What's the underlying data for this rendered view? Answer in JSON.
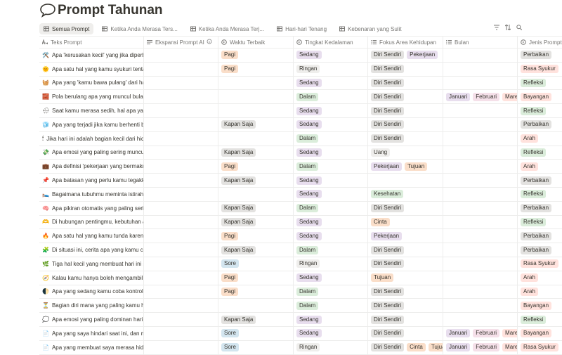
{
  "title": "Prompt Tahunan",
  "tabs": [
    "Semua Prompt",
    "Ketika Anda Merasa Ters...",
    "Ketika Anda Merasa Terj...",
    "Hari-hari Tenang",
    "Kebenaran yang Sulit"
  ],
  "table": {
    "columns": [
      "Teks Prompt",
      "Ekspansi Prompt AI",
      "Waktu Terbaik",
      "Tingkat Kedalaman",
      "Fokus Area Kehidupan",
      "Bulan",
      "Jenis Prompt"
    ],
    "tag_colors": {
      "Pagi": "#fadec9",
      "Kapan Saja": "#e3e2e0",
      "Sore": "#d3e5ef",
      "Sedang": "#e8deee",
      "Ringan": "#efeeec",
      "Dalam": "#dbeddb",
      "Diri Sendiri": "#e3e2e0",
      "Pekerjaan": "#e8deee",
      "Uang": "#efeeec",
      "Tujuan": "#fadec9",
      "Kesehatan": "#dbeddb",
      "Cinta": "#fadec9",
      "Januari": "#e8deee",
      "Februari": "#f5e0e9",
      "Maret": "#ffe2dd",
      "Perbaikan": "#e3e2e0",
      "Rasa Syukur": "#ffe2dd",
      "Refleksi": "#dbeddb",
      "Bayangan": "#ffe2dd",
      "Arah": "#ffe2dd"
    },
    "rows": [
      {
        "icon": "🛠️",
        "text": "Apa 'kerusakan kecil' yang jika diperbaiki",
        "waktu": [
          "Pagi"
        ],
        "kedalaman": [
          "Sedang"
        ],
        "fokus": [
          "Diri Sendiri",
          "Pekerjaan"
        ],
        "bulan": [],
        "jenis": [
          "Perbaikan"
        ]
      },
      {
        "icon": "🌞",
        "text": "Apa satu hal yang kamu syukuri tentang",
        "waktu": [
          "Pagi"
        ],
        "kedalaman": [
          "Ringan"
        ],
        "fokus": [
          "Diri Sendiri"
        ],
        "bulan": [],
        "jenis": [
          "Rasa Syukur"
        ]
      },
      {
        "icon": "🧺",
        "text": "Apa yang 'kamu bawa pulang' dari hari i",
        "waktu": [],
        "kedalaman": [
          "Sedang"
        ],
        "fokus": [
          "Diri Sendiri"
        ],
        "bulan": [],
        "jenis": [
          "Refleksi"
        ]
      },
      {
        "icon": "🧱",
        "text": "Pola berulang apa yang muncul bulan in",
        "waktu": [],
        "kedalaman": [
          "Dalam"
        ],
        "fokus": [
          "Diri Sendiri"
        ],
        "bulan": [
          "Januari",
          "Februari",
          "Maret"
        ],
        "jenis": [
          "Bayangan"
        ]
      },
      {
        "icon": "🌧",
        "text": "Saat kamu merasa sedih, hal apa yang l",
        "waktu": [],
        "kedalaman": [
          "Sedang"
        ],
        "fokus": [
          "Diri Sendiri"
        ],
        "bulan": [],
        "jenis": [
          "Refleksi"
        ]
      },
      {
        "icon": "🧊",
        "text": "Apa yang terjadi jika kamu berhenti bere",
        "waktu": [
          "Kapan Saja"
        ],
        "kedalaman": [
          "Sedang"
        ],
        "fokus": [
          "Diri Sendiri"
        ],
        "bulan": [],
        "jenis": [
          "Perbaikan"
        ]
      },
      {
        "icon": "🕯",
        "text": "Jika hari ini adalah bagian kecil dari hidu",
        "waktu": [],
        "kedalaman": [
          "Dalam"
        ],
        "fokus": [
          "Diri Sendiri"
        ],
        "bulan": [],
        "jenis": [
          "Arah"
        ]
      },
      {
        "icon": "💸",
        "text": "Apa emosi yang paling sering muncul sa",
        "waktu": [
          "Kapan Saja"
        ],
        "kedalaman": [
          "Sedang"
        ],
        "fokus": [
          "Uang"
        ],
        "bulan": [],
        "jenis": [
          "Refleksi"
        ]
      },
      {
        "icon": "💼",
        "text": "Apa definisi 'pekerjaan yang bermakna'",
        "waktu": [
          "Pagi"
        ],
        "kedalaman": [
          "Dalam"
        ],
        "fokus": [
          "Pekerjaan",
          "Tujuan"
        ],
        "bulan": [],
        "jenis": [
          "Arah"
        ]
      },
      {
        "icon": "📌",
        "text": "Apa batasan yang perlu kamu tegakkan",
        "waktu": [
          "Kapan Saja"
        ],
        "kedalaman": [
          "Sedang"
        ],
        "fokus": [],
        "bulan": [],
        "jenis": [
          "Perbaikan"
        ]
      },
      {
        "icon": "🛌",
        "text": "Bagaimana tubuhmu meminta istirahat a",
        "waktu": [],
        "kedalaman": [
          "Sedang"
        ],
        "fokus": [
          "Kesehatan"
        ],
        "bulan": [],
        "jenis": [
          "Refleksi"
        ]
      },
      {
        "icon": "🧠",
        "text": "Apa pikiran otomatis yang paling sering",
        "waktu": [
          "Kapan Saja"
        ],
        "kedalaman": [
          "Dalam"
        ],
        "fokus": [
          "Diri Sendiri"
        ],
        "bulan": [],
        "jenis": [
          "Perbaikan"
        ]
      },
      {
        "icon": "🫶",
        "text": "Di hubungan pentingmu, kebutuhan apa",
        "waktu": [
          "Kapan Saja"
        ],
        "kedalaman": [
          "Sedang"
        ],
        "fokus": [
          "Cinta"
        ],
        "bulan": [],
        "jenis": [
          "Refleksi"
        ]
      },
      {
        "icon": "🔥",
        "text": "Apa satu hal yang kamu tunda karena ta",
        "waktu": [
          "Pagi"
        ],
        "kedalaman": [
          "Sedang"
        ],
        "fokus": [
          "Pekerjaan"
        ],
        "bulan": [],
        "jenis": [
          "Perbaikan"
        ]
      },
      {
        "icon": "🧩",
        "text": "Di situasi ini, cerita apa yang kamu cerita",
        "waktu": [
          "Kapan Saja"
        ],
        "kedalaman": [
          "Dalam"
        ],
        "fokus": [
          "Diri Sendiri"
        ],
        "bulan": [],
        "jenis": [
          "Perbaikan"
        ]
      },
      {
        "icon": "🌿",
        "text": "Tiga hal kecil yang membuat hari ini sed",
        "waktu": [
          "Sore"
        ],
        "kedalaman": [
          "Ringan"
        ],
        "fokus": [
          "Diri Sendiri"
        ],
        "bulan": [],
        "jenis": [
          "Rasa Syukur"
        ]
      },
      {
        "icon": "🧭",
        "text": "Kalau kamu hanya boleh mengambil sat",
        "waktu": [
          "Pagi"
        ],
        "kedalaman": [
          "Sedang"
        ],
        "fokus": [
          "Tujuan"
        ],
        "bulan": [],
        "jenis": [
          "Arah"
        ]
      },
      {
        "icon": "🌓",
        "text": "Apa yang sedang kamu coba kontrol, pa",
        "waktu": [
          "Pagi"
        ],
        "kedalaman": [
          "Dalam"
        ],
        "fokus": [
          "Diri Sendiri"
        ],
        "bulan": [],
        "jenis": [
          "Arah"
        ]
      },
      {
        "icon": "⏳",
        "text": "Bagian diri mana yang paling kamu hind",
        "waktu": [],
        "kedalaman": [
          "Dalam"
        ],
        "fokus": [
          "Diri Sendiri"
        ],
        "bulan": [],
        "jenis": [
          "Bayangan"
        ]
      },
      {
        "icon": "💭",
        "text": "Apa emosi yang paling dominan hari ini,",
        "waktu": [
          "Kapan Saja"
        ],
        "kedalaman": [
          "Sedang"
        ],
        "fokus": [
          "Diri Sendiri"
        ],
        "bulan": [],
        "jenis": [
          "Refleksi"
        ]
      },
      {
        "icon": "📄",
        "text": "Apa yang saya hindari saat ini, dan men",
        "waktu": [
          "Sore"
        ],
        "kedalaman": [
          "Sedang"
        ],
        "fokus": [
          "Diri Sendiri"
        ],
        "bulan": [
          "Januari",
          "Februari",
          "Maret"
        ],
        "jenis": [
          "Bayangan"
        ]
      },
      {
        "icon": "📄",
        "text": "Apa yang membuat saya merasa hidup",
        "waktu": [
          "Sore"
        ],
        "kedalaman": [
          "Ringan"
        ],
        "fokus": [
          "Diri Sendiri",
          "Cinta",
          "Tujuan"
        ],
        "bulan": [
          "Januari",
          "Februari",
          "Maret"
        ],
        "jenis": [
          "Rasa Syukur"
        ]
      }
    ]
  }
}
